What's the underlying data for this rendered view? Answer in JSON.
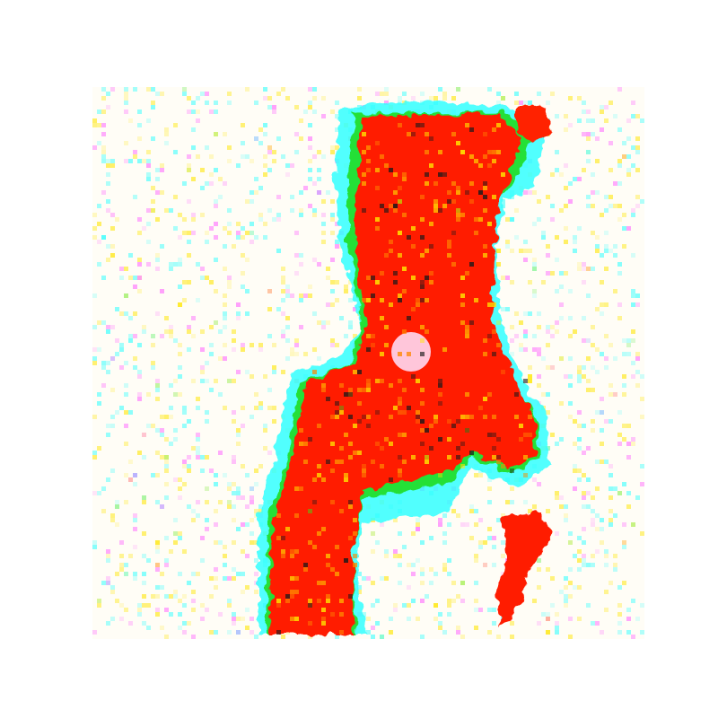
{
  "image": {
    "description_free": true,
    "colors": {
      "background": "#ffffff",
      "field": "#fffdf6",
      "figure": "#ff1a00",
      "speckle_yellow": "#ffe600",
      "speckle_cyan": "#33ffff",
      "speckle_green": "#22dd22",
      "speckle_magenta": "#ff66ff",
      "speckle_dark": "#1a1a1a"
    }
  }
}
